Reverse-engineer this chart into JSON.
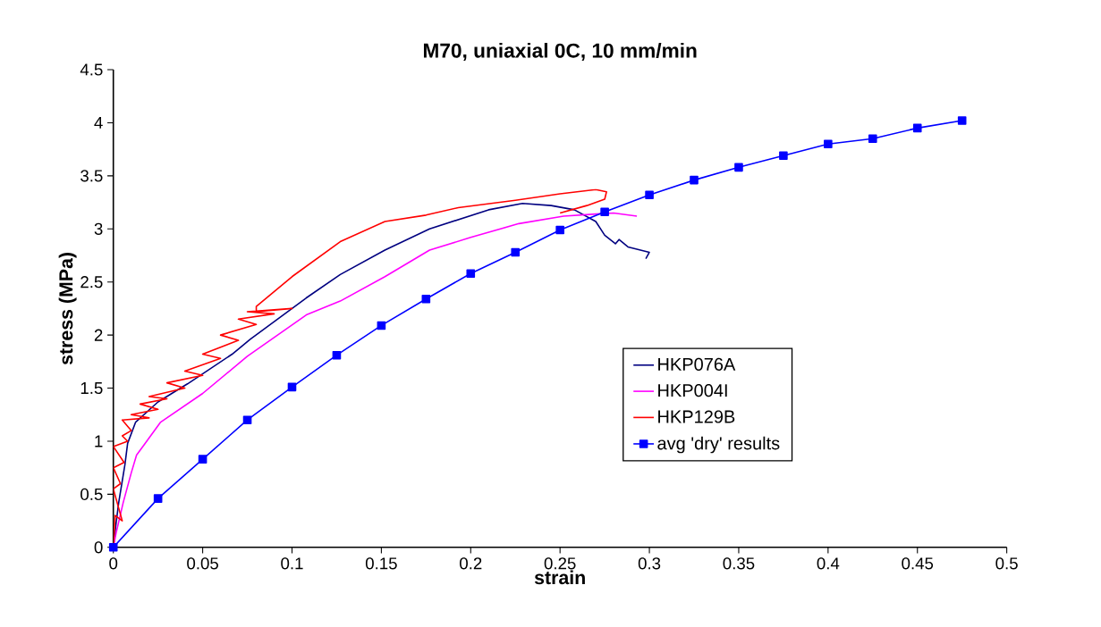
{
  "chart_data": {
    "type": "line",
    "title": "M70, uniaxial 0C, 10 mm/min",
    "xlabel": "strain",
    "ylabel": "stress (MPa)",
    "xlim": [
      0,
      0.5
    ],
    "ylim": [
      0,
      4.5
    ],
    "xticks": [
      0,
      0.05,
      0.1,
      0.15,
      0.2,
      0.25,
      0.3,
      0.35,
      0.4,
      0.45,
      0.5
    ],
    "yticks": [
      0,
      0.5,
      1,
      1.5,
      2,
      2.5,
      3,
      3.5,
      4,
      4.5
    ],
    "grid": false,
    "legend": "right",
    "line_style": "solid",
    "series": [
      {
        "name": "HKP076A",
        "color": "#000080",
        "marker": "none",
        "x": [
          0,
          0.0015,
          0.003,
          0.0065,
          0.008,
          0.0125,
          0.025,
          0.0415,
          0.0665,
          0.0766,
          0.108,
          0.127,
          0.152,
          0.177,
          0.21,
          0.229,
          0.245,
          0.258,
          0.27,
          0.275,
          0.281,
          0.283,
          0.288,
          0.3,
          0.298
        ],
        "values": [
          0,
          0.22,
          0.42,
          0.78,
          0.98,
          1.18,
          1.37,
          1.54,
          1.82,
          1.96,
          2.35,
          2.57,
          2.8,
          3.0,
          3.18,
          3.24,
          3.22,
          3.18,
          3.07,
          2.94,
          2.86,
          2.9,
          2.83,
          2.78,
          2.72
        ]
      },
      {
        "name": "HKP004I",
        "color": "#ff00ff",
        "marker": "none",
        "x": [
          0,
          0.0015,
          0.0055,
          0.01,
          0.013,
          0.0165,
          0.0265,
          0.05,
          0.075,
          0.108,
          0.127,
          0.152,
          0.177,
          0.2,
          0.227,
          0.252,
          0.27,
          0.28,
          0.293
        ],
        "values": [
          0,
          0.13,
          0.42,
          0.7,
          0.87,
          0.95,
          1.18,
          1.45,
          1.8,
          2.19,
          2.32,
          2.55,
          2.8,
          2.92,
          3.05,
          3.12,
          3.14,
          3.15,
          3.12
        ]
      },
      {
        "name": "HKP129B",
        "color": "#ff0000",
        "marker": "none",
        "x": [
          0,
          0.001,
          0.005,
          0.0,
          0.004,
          0.0,
          0.006,
          0.0,
          0.008,
          0.005,
          0.01,
          0.005,
          0.02,
          0.01,
          0.025,
          0.015,
          0.03,
          0.02,
          0.04,
          0.03,
          0.05,
          0.04,
          0.06,
          0.05,
          0.07,
          0.06,
          0.08,
          0.07,
          0.09,
          0.075,
          0.1,
          0.08,
          0.08,
          0.1,
          0.127,
          0.152,
          0.175,
          0.193,
          0.225,
          0.25,
          0.27,
          0.276,
          0.275,
          0.265,
          0.25
        ],
        "values": [
          0,
          0.3,
          0.25,
          0.55,
          0.6,
          0.75,
          0.8,
          0.95,
          1.0,
          1.05,
          1.1,
          1.2,
          1.22,
          1.25,
          1.3,
          1.35,
          1.4,
          1.42,
          1.5,
          1.55,
          1.62,
          1.66,
          1.78,
          1.82,
          1.95,
          2.0,
          2.1,
          2.15,
          2.2,
          2.22,
          2.25,
          2.22,
          2.27,
          2.55,
          2.88,
          3.07,
          3.13,
          3.2,
          3.27,
          3.33,
          3.37,
          3.35,
          3.28,
          3.22,
          3.15
        ]
      },
      {
        "name": "avg 'dry' results",
        "color": "#0000ff",
        "marker": "square",
        "x": [
          0,
          0.025,
          0.05,
          0.075,
          0.1,
          0.125,
          0.15,
          0.175,
          0.2,
          0.225,
          0.25,
          0.275,
          0.3,
          0.325,
          0.35,
          0.375,
          0.4,
          0.425,
          0.45,
          0.475
        ],
        "values": [
          0,
          0.46,
          0.83,
          1.2,
          1.51,
          1.81,
          2.09,
          2.34,
          2.58,
          2.78,
          2.99,
          3.16,
          3.32,
          3.46,
          3.58,
          3.69,
          3.8,
          3.85,
          3.95,
          4.02
        ]
      }
    ]
  }
}
